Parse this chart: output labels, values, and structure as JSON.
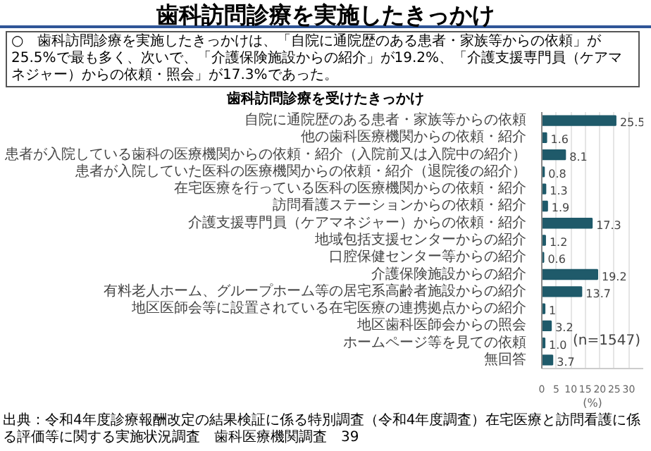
{
  "chart_data": {
    "type": "bar",
    "orientation": "horizontal",
    "title": "歯科訪問診療を実施したきっかけ",
    "subtitle": "歯科訪問診療を受けたきっかけ",
    "xlabel": "(%)",
    "categories": [
      "自院に通院歴のある患者・家族等からの依頼",
      "他の歯科医療機関からの依頼・紹介",
      "患者が入院している歯科の医療機関からの依頼・紹介（入院前又は入院中の紹介）",
      "患者が入院していた医科の医療機関からの依頼・紹介（退院後の紹介）",
      "在宅医療を行っている医科の医療機関からの依頼・紹介",
      "訪問看護ステーションからの依頼・紹介",
      "介護支援専門員（ケアマネジャー）からの依頼・紹介",
      "地域包括支援センターからの紹介",
      "口腔保健センター等からの紹介",
      "介護保険施設からの紹介",
      "有料老人ホーム、グループホーム等の居宅系高齢者施設からの紹介",
      "地区医師会等に設置されている在宅医療の連携拠点からの紹介",
      "地区歯科医師会からの照会",
      "ホームページ等を見ての依頼",
      "無回答"
    ],
    "values": [
      25.5,
      1.6,
      8.1,
      0.8,
      1.3,
      1.9,
      17.3,
      1.2,
      0.6,
      19.2,
      13.7,
      1,
      3.2,
      1.0,
      3.7
    ],
    "value_labels": [
      "25.5",
      "1.6",
      "8.1",
      "0.8",
      "1.3",
      "1.9",
      "17.3",
      "1.2",
      "0.6",
      "19.2",
      "13.7",
      "1",
      "3.2",
      "1.0",
      "3.7"
    ],
    "color": "#1f5a6a",
    "xlim": [
      0,
      35
    ],
    "xticks": [
      0,
      5,
      10,
      15,
      20,
      25,
      30
    ],
    "grid": "x",
    "annotations": [
      "○　歯科訪問診療を実施したきっかけは、「自院に通院歴のある患者・家族等からの依頼」が25.5%で最も多く、次いで、「介護保険施設からの紹介」が19.2%、「介護支援専門員（ケアマネジャー）からの依頼・照会」が17.3%であった。",
      "(n=1547)",
      "出典：令和4年度診療報酬改定の結果検証に係る特別調査（令和4年度調査）在宅医療と訪問看護に係る評価等に関する実施状況調査　歯科医療機関調査",
      "39"
    ]
  }
}
